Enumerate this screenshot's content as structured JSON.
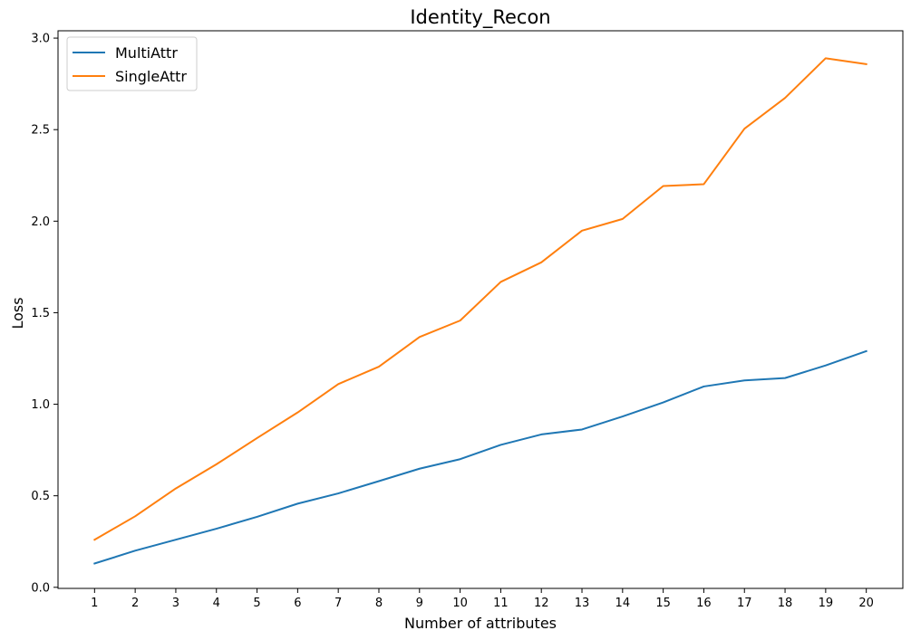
{
  "chart_data": {
    "type": "line",
    "title": "Identity_Recon",
    "xlabel": "Number of attributes",
    "ylabel": "Loss",
    "x": [
      1,
      2,
      3,
      4,
      5,
      6,
      7,
      8,
      9,
      10,
      11,
      12,
      13,
      14,
      15,
      16,
      17,
      18,
      19,
      20
    ],
    "x_tick_labels": [
      "1",
      "2",
      "3",
      "4",
      "5",
      "6",
      "7",
      "8",
      "9",
      "10",
      "11",
      "12",
      "13",
      "14",
      "15",
      "16",
      "17",
      "18",
      "19",
      "20"
    ],
    "xlim": [
      0.1,
      20.9
    ],
    "ylim": [
      -0.006,
      3.04
    ],
    "y_ticks": [
      0.0,
      0.5,
      1.0,
      1.5,
      2.0,
      2.5,
      3.0
    ],
    "y_tick_labels": [
      "0.0",
      "0.5",
      "1.0",
      "1.5",
      "2.0",
      "2.5",
      "3.0"
    ],
    "grid": false,
    "legend_position": "top-left",
    "series": [
      {
        "name": "MultiAttr",
        "color": "#1f77b4",
        "values": [
          0.13,
          0.2,
          0.26,
          0.32,
          0.385,
          0.457,
          0.513,
          0.58,
          0.648,
          0.7,
          0.778,
          0.835,
          0.862,
          0.933,
          1.01,
          1.097,
          1.13,
          1.143,
          1.212,
          1.29
        ]
      },
      {
        "name": "SingleAttr",
        "color": "#ff7f0e",
        "values": [
          0.26,
          0.388,
          0.54,
          0.672,
          0.815,
          0.955,
          1.11,
          1.205,
          1.367,
          1.457,
          1.668,
          1.775,
          1.948,
          2.012,
          2.192,
          2.202,
          2.505,
          2.673,
          2.89,
          2.858
        ]
      }
    ]
  }
}
